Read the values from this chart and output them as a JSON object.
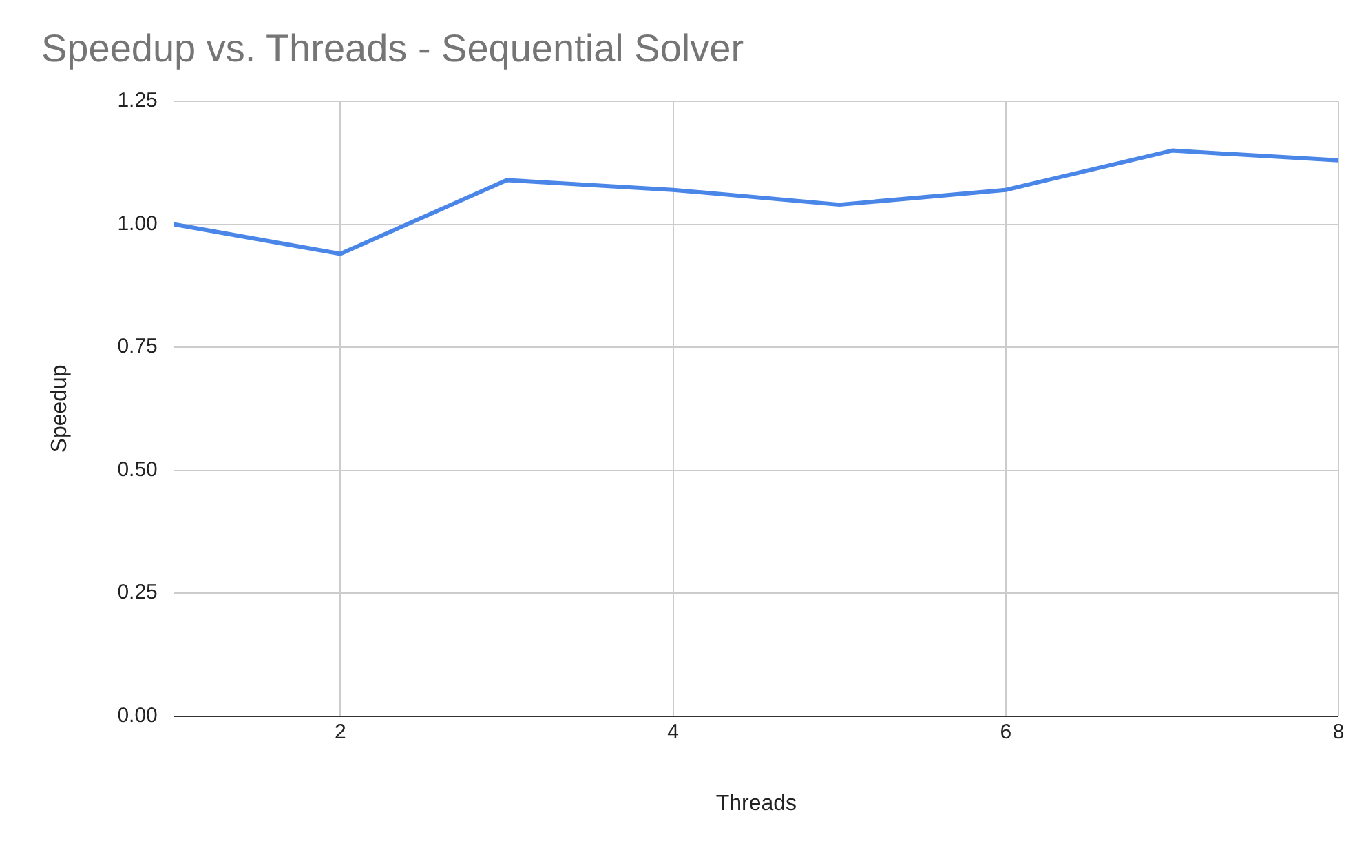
{
  "chart_data": {
    "type": "line",
    "title": "Speedup vs. Threads - Sequential Solver",
    "xlabel": "Threads",
    "ylabel": "Speedup",
    "x": [
      1,
      2,
      3,
      4,
      5,
      6,
      7,
      8
    ],
    "series": [
      {
        "color": "#4a86e8",
        "values": [
          1.0,
          0.94,
          1.09,
          1.07,
          1.04,
          1.07,
          1.15,
          1.13
        ]
      }
    ],
    "xlim": [
      1,
      8
    ],
    "xticks": [
      2,
      4,
      6,
      8
    ],
    "ylim": [
      0,
      1.25
    ],
    "yticks": [
      {
        "value": 0,
        "label": "0.00"
      },
      0.25,
      {
        "value": 0.5,
        "label": "0.50"
      },
      0.75,
      {
        "value": 1,
        "label": "1.00"
      },
      1.25
    ],
    "grid": true,
    "legend": false,
    "marker": "none",
    "line_style": "solid"
  }
}
